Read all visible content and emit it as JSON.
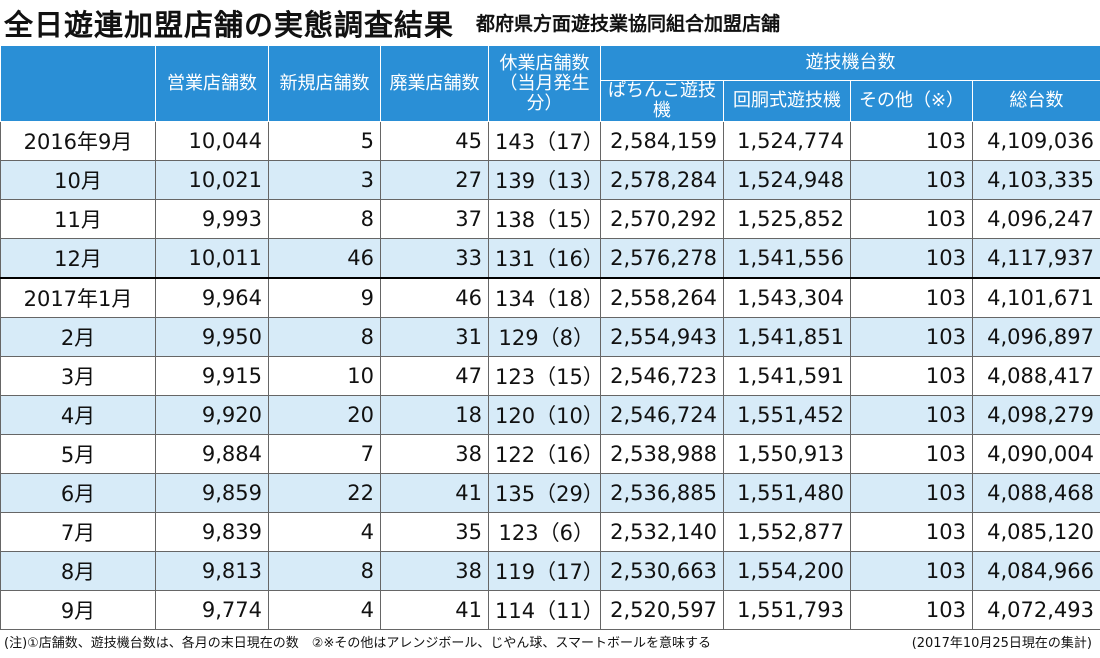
{
  "header": {
    "title": "全日遊連加盟店舗の実態調査結果",
    "subtitle": "都府県方面遊技業協同組合加盟店舗"
  },
  "table": {
    "columns": [
      "営業店舗数",
      "新規店舗数",
      "廃業店舗数"
    ],
    "closed_header": [
      "休業店舗数",
      "（当月発生分）"
    ],
    "group_header": "遊技機台数",
    "group_columns": [
      "ぱちんこ遊技機",
      "回胴式遊技機",
      "その他（※）",
      "総台数"
    ],
    "rows": [
      [
        "2016年9月",
        "10,044",
        "5",
        "45",
        "143（17）",
        "2,584,159",
        "1,524,774",
        "103",
        "4,109,036"
      ],
      [
        "10月",
        "10,021",
        "3",
        "27",
        "139（13）",
        "2,578,284",
        "1,524,948",
        "103",
        "4,103,335"
      ],
      [
        "11月",
        "9,993",
        "8",
        "37",
        "138（15）",
        "2,570,292",
        "1,525,852",
        "103",
        "4,096,247"
      ],
      [
        "12月",
        "10,011",
        "46",
        "33",
        "131（16）",
        "2,576,278",
        "1,541,556",
        "103",
        "4,117,937"
      ],
      [
        "2017年1月",
        "9,964",
        "9",
        "46",
        "134（18）",
        "2,558,264",
        "1,543,304",
        "103",
        "4,101,671"
      ],
      [
        "2月",
        "9,950",
        "8",
        "31",
        "129（8）",
        "2,554,943",
        "1,541,851",
        "103",
        "4,096,897"
      ],
      [
        "3月",
        "9,915",
        "10",
        "47",
        "123（15）",
        "2,546,723",
        "1,541,591",
        "103",
        "4,088,417"
      ],
      [
        "4月",
        "9,920",
        "20",
        "18",
        "120（10）",
        "2,546,724",
        "1,551,452",
        "103",
        "4,098,279"
      ],
      [
        "5月",
        "9,884",
        "7",
        "38",
        "122（16）",
        "2,538,988",
        "1,550,913",
        "103",
        "4,090,004"
      ],
      [
        "6月",
        "9,859",
        "22",
        "41",
        "135（29）",
        "2,536,885",
        "1,551,480",
        "103",
        "4,088,468"
      ],
      [
        "7月",
        "9,839",
        "4",
        "35",
        "123（6）",
        "2,532,140",
        "1,552,877",
        "103",
        "4,085,120"
      ],
      [
        "8月",
        "9,813",
        "8",
        "38",
        "119（17）",
        "2,530,663",
        "1,554,200",
        "103",
        "4,084,966"
      ],
      [
        "9月",
        "9,774",
        "4",
        "41",
        "114（11）",
        "2,520,597",
        "1,551,793",
        "103",
        "4,072,493"
      ]
    ]
  },
  "footer": {
    "note": "(注)①店舗数、遊技機台数は、各月の末日現在の数　②※その他はアレンジボール、じやん球、スマートボールを意味する",
    "date": "(2017年10月25日現在の集計)"
  }
}
